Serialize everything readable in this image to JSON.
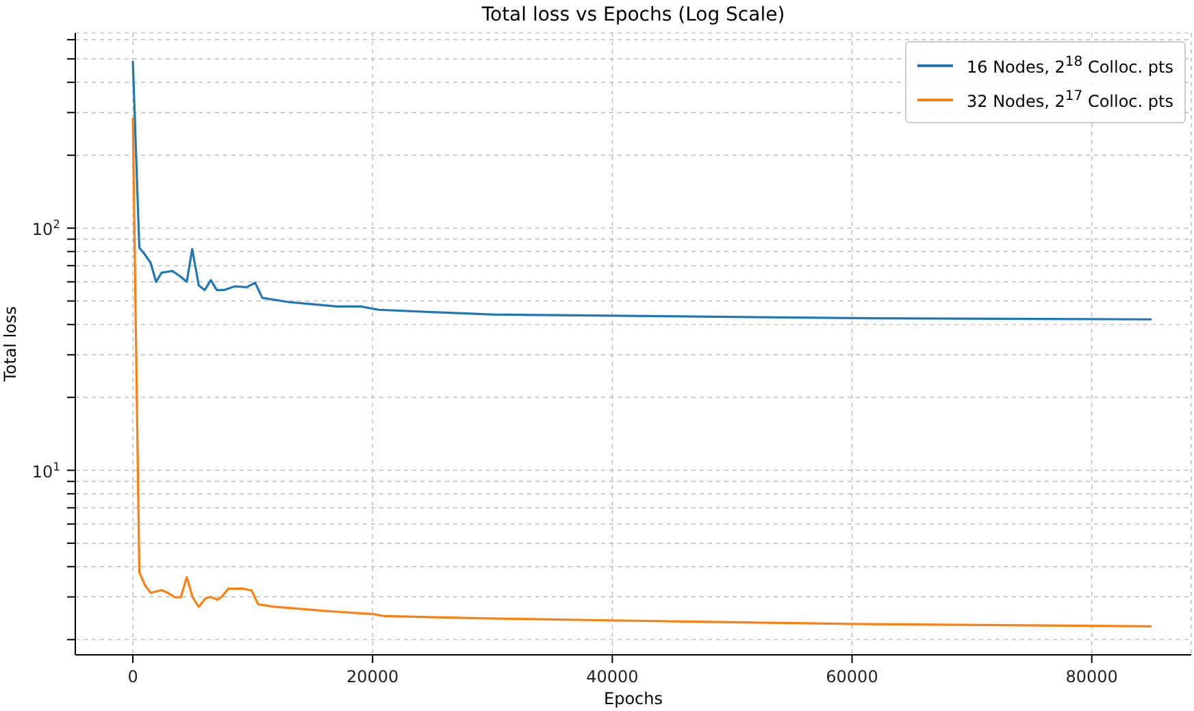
{
  "chart_data": {
    "type": "line",
    "title": "Total loss vs Epochs (Log Scale)",
    "xlabel": "Epochs",
    "ylabel": "Total loss",
    "log": "y",
    "grid": true,
    "legend": "top right",
    "line_style": "solid",
    "marker": "none",
    "xlim": [
      -4800,
      88300
    ],
    "xticks": [
      0,
      20000,
      40000,
      60000,
      80000
    ],
    "ylim": [
      1.73,
      640
    ],
    "yticks": [
      {
        "value": 2,
        "label": null
      },
      {
        "value": 3,
        "label": null
      },
      {
        "value": 4,
        "label": null
      },
      {
        "value": 5,
        "label": null
      },
      {
        "value": 6,
        "label": null
      },
      {
        "value": 7,
        "label": null
      },
      {
        "value": 8,
        "label": null
      },
      {
        "value": 9,
        "label": null
      },
      {
        "value": 10,
        "label": "10$^{1}$"
      },
      {
        "value": 20,
        "label": null
      },
      {
        "value": 30,
        "label": null
      },
      {
        "value": 40,
        "label": null
      },
      {
        "value": 50,
        "label": null
      },
      {
        "value": 60,
        "label": null
      },
      {
        "value": 70,
        "label": null
      },
      {
        "value": 80,
        "label": null
      },
      {
        "value": 90,
        "label": null
      },
      {
        "value": 100,
        "label": "10$^{2}$"
      },
      {
        "value": 200,
        "label": null
      },
      {
        "value": 300,
        "label": null
      },
      {
        "value": 400,
        "label": null
      },
      {
        "value": 500,
        "label": null
      },
      {
        "value": 600,
        "label": null
      }
    ],
    "series": [
      {
        "name": "16 Nodes, 2$^{18}$ Colloc. pts",
        "color": "#1f77b4",
        "x": [
          0,
          540,
          900,
          1480,
          1940,
          2400,
          3300,
          4000,
          4500,
          4950,
          5500,
          6000,
          6500,
          7000,
          7600,
          8500,
          9500,
          10200,
          10800,
          13000,
          15000,
          17000,
          19000,
          20500,
          25000,
          30000,
          40000,
          60000,
          85000
        ],
        "values": [
          490,
          83,
          79,
          72,
          60,
          65.5,
          66.5,
          63,
          60,
          82,
          58,
          55.5,
          61,
          55.5,
          55.5,
          57.5,
          57,
          59.5,
          51.5,
          49.5,
          48.5,
          47.5,
          47.5,
          46,
          45,
          44,
          43.5,
          42.5,
          42
        ]
      },
      {
        "name": "32 Nodes, 2$^{17}$ Colloc. pts",
        "color": "#ff7f0e",
        "x": [
          0,
          540,
          1000,
          1500,
          2400,
          2850,
          3500,
          4000,
          4500,
          5000,
          5500,
          6050,
          6500,
          7050,
          7400,
          7950,
          9100,
          9900,
          10450,
          11800,
          13100,
          16300,
          20000,
          21000,
          28900,
          40000,
          60000,
          85000
        ],
        "values": [
          285,
          3.8,
          3.36,
          3.12,
          3.2,
          3.13,
          2.99,
          2.99,
          3.62,
          2.98,
          2.73,
          2.96,
          3.0,
          2.92,
          3.0,
          3.24,
          3.25,
          3.19,
          2.8,
          2.73,
          2.7,
          2.62,
          2.55,
          2.5,
          2.45,
          2.4,
          2.32,
          2.27
        ]
      }
    ]
  }
}
